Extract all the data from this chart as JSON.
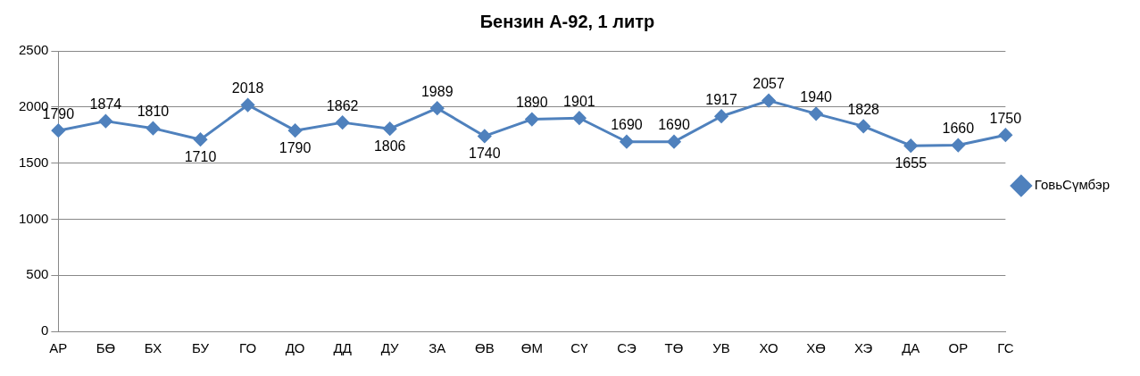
{
  "chart_data": {
    "type": "line",
    "title": "Бензин А-92, 1 литр",
    "categories": [
      "АР",
      "БӨ",
      "БХ",
      "БУ",
      "ГО",
      "ДО",
      "ДД",
      "ДУ",
      "ЗА",
      "ӨВ",
      "ӨМ",
      "СҮ",
      "СЭ",
      "ТӨ",
      "УВ",
      "ХО",
      "ХӨ",
      "ХЭ",
      "ДА",
      "ОР",
      "ГС"
    ],
    "series": [
      {
        "name": "ГовьСүмбэр",
        "color": "#4f81bd",
        "values": [
          1790,
          1874,
          1810,
          1710,
          2018,
          1790,
          1862,
          1806,
          1989,
          1740,
          1890,
          1901,
          1690,
          1690,
          1917,
          2057,
          1940,
          1828,
          1655,
          1660,
          1750
        ]
      }
    ],
    "ylim": [
      0,
      2500
    ],
    "yticks": [
      0,
      500,
      1000,
      1500,
      2000,
      2500
    ],
    "grid": "y",
    "legend": "right",
    "marker": "diamond",
    "line_style": "solid",
    "data_labels": true
  }
}
